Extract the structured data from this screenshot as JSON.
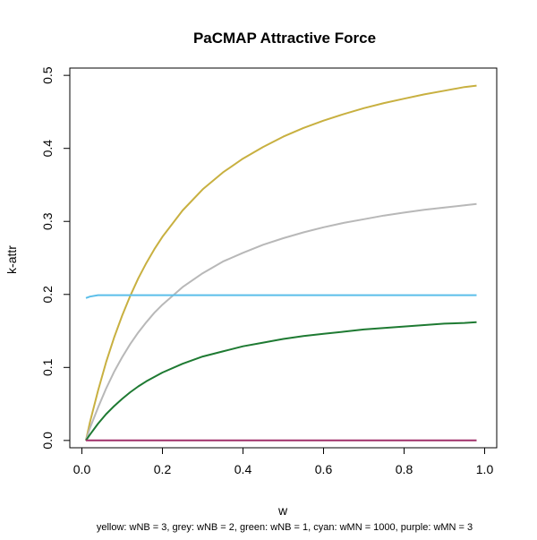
{
  "chart_data": {
    "type": "line",
    "title": "PaCMAP Attractive Force",
    "xlabel": "w",
    "ylabel": "k-attr",
    "caption": "yellow: wNB = 3, grey: wNB = 2, green: wNB = 1, cyan: wMN = 1000, purple: wMN = 3",
    "xlim": [
      -0.03,
      1.03
    ],
    "ylim": [
      -0.01,
      0.51
    ],
    "x_ticks": [
      0.0,
      0.2,
      0.4,
      0.6,
      0.8,
      1.0
    ],
    "x_tick_labels": [
      "0.0",
      "0.2",
      "0.4",
      "0.6",
      "0.8",
      "1.0"
    ],
    "y_ticks": [
      0.0,
      0.1,
      0.2,
      0.3,
      0.4,
      0.5
    ],
    "y_tick_labels": [
      "0.0",
      "0.1",
      "0.2",
      "0.3",
      "0.4",
      "0.5"
    ],
    "grid": false,
    "legend": "none",
    "x": [
      0.01,
      0.02,
      0.04,
      0.06,
      0.08,
      0.1,
      0.12,
      0.14,
      0.16,
      0.18,
      0.2,
      0.25,
      0.3,
      0.35,
      0.4,
      0.45,
      0.5,
      0.55,
      0.6,
      0.65,
      0.7,
      0.75,
      0.8,
      0.85,
      0.9,
      0.95,
      0.98
    ],
    "series": [
      {
        "color": "#c8b040",
        "values": [
          0.0,
          0.025,
          0.068,
          0.107,
          0.141,
          0.171,
          0.198,
          0.222,
          0.243,
          0.262,
          0.279,
          0.315,
          0.344,
          0.367,
          0.386,
          0.402,
          0.416,
          0.428,
          0.438,
          0.447,
          0.455,
          0.462,
          0.468,
          0.474,
          0.479,
          0.484,
          0.486
        ]
      },
      {
        "color": "#b8b8b8",
        "values": [
          0.0,
          0.017,
          0.045,
          0.071,
          0.094,
          0.114,
          0.132,
          0.148,
          0.162,
          0.175,
          0.186,
          0.21,
          0.229,
          0.245,
          0.257,
          0.268,
          0.277,
          0.285,
          0.292,
          0.298,
          0.303,
          0.308,
          0.312,
          0.316,
          0.319,
          0.322,
          0.324
        ]
      },
      {
        "color": "#1e7a32",
        "values": [
          0.0,
          0.008,
          0.023,
          0.036,
          0.047,
          0.057,
          0.066,
          0.074,
          0.081,
          0.087,
          0.093,
          0.105,
          0.115,
          0.122,
          0.129,
          0.134,
          0.139,
          0.143,
          0.146,
          0.149,
          0.152,
          0.154,
          0.156,
          0.158,
          0.16,
          0.161,
          0.162
        ]
      },
      {
        "color": "#5bbfea",
        "values": [
          0.195,
          0.197,
          0.199,
          0.199,
          0.199,
          0.199,
          0.199,
          0.199,
          0.199,
          0.199,
          0.199,
          0.199,
          0.199,
          0.199,
          0.199,
          0.199,
          0.199,
          0.199,
          0.199,
          0.199,
          0.199,
          0.199,
          0.199,
          0.199,
          0.199,
          0.199,
          0.199
        ]
      },
      {
        "color": "#a0306a",
        "values": [
          0.0,
          0.0,
          0.0,
          0.0,
          0.0,
          0.0,
          0.0,
          0.0,
          0.0,
          0.0,
          0.0,
          0.0,
          0.0,
          0.0,
          0.0,
          0.0,
          0.0,
          0.0,
          0.0,
          0.0,
          0.0,
          0.0,
          0.0,
          0.0,
          0.0,
          0.0,
          0.0
        ]
      }
    ]
  }
}
